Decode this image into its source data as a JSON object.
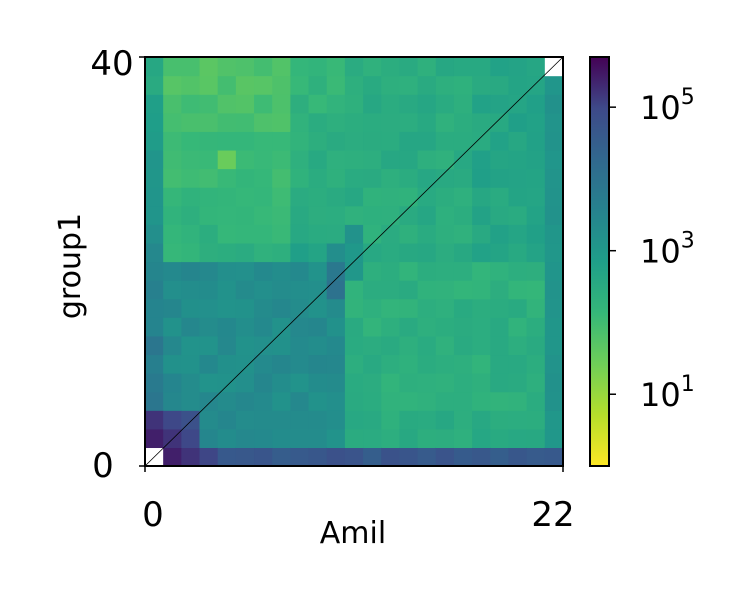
{
  "chart_data": {
    "type": "heatmap",
    "title": "",
    "xlabel": "Amil",
    "ylabel": "group1",
    "x_tick_labels": [
      "0",
      "22"
    ],
    "y_tick_labels": [
      "0",
      "40"
    ],
    "xlim": [
      0,
      22
    ],
    "ylim": [
      0,
      40
    ],
    "grid": false,
    "diagonal_line": true,
    "colormap": "viridis_r",
    "color_scale": "log",
    "color_range": [
      1,
      500000
    ],
    "colorbar": {
      "position": "right",
      "ticks": [
        {
          "base": "10",
          "exp": "1",
          "value": 10
        },
        {
          "base": "10",
          "exp": "3",
          "value": 1000
        },
        {
          "base": "10",
          "exp": "5",
          "value": 100000
        }
      ]
    },
    "cells": {
      "x_bins": 23,
      "y_bins": 22,
      "block_split_x": 11,
      "block_split_y": 11,
      "lower_left_level": 3.3,
      "upper_left_level": 1.75,
      "lower_right_level": 2.3,
      "upper_right_level": 2.45,
      "right_column_level": 3.2,
      "bottom_row_level": 4.7,
      "left_column_level": 4.2,
      "corner_peak_level": 5.6,
      "empty_cells": [
        [
          0,
          0
        ],
        [
          22,
          21
        ]
      ]
    }
  }
}
